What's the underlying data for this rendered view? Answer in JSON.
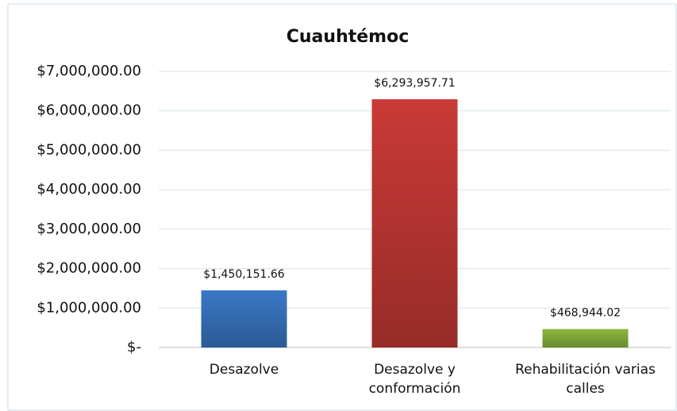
{
  "chart_data": {
    "type": "bar",
    "title": "Cuauhtémoc",
    "categories": [
      "Desazolve",
      "Desazolve y conformación",
      "Rehabilitación varias calles"
    ],
    "values": [
      1450151.66,
      6293957.71,
      468944.02
    ],
    "value_labels": [
      "$1,450,151.66",
      "$6,293,957.71",
      "$468,944.02"
    ],
    "colors": [
      "#3a78c6",
      "#c93a36",
      "#8cb83e"
    ],
    "ylim": [
      0,
      7000000
    ],
    "yticks": [
      {
        "value": 0,
        "label": "$-"
      },
      {
        "value": 1000000,
        "label": "$1,000,000.00"
      },
      {
        "value": 2000000,
        "label": "$2,000,000.00"
      },
      {
        "value": 3000000,
        "label": "$3,000,000.00"
      },
      {
        "value": 4000000,
        "label": "$4,000,000.00"
      },
      {
        "value": 5000000,
        "label": "$5,000,000.00"
      },
      {
        "value": 6000000,
        "label": "$6,000,000.00"
      },
      {
        "value": 7000000,
        "label": "$7,000,000.00"
      }
    ],
    "grid": true
  }
}
